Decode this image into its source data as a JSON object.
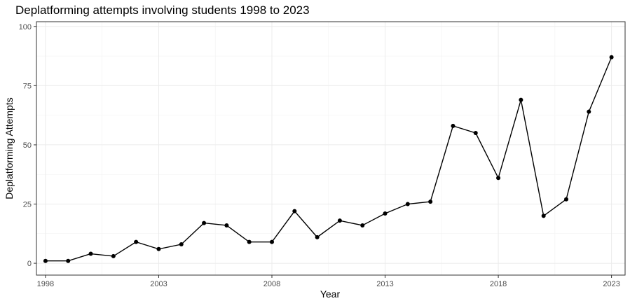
{
  "chart_data": {
    "type": "line",
    "title": "Deplatforming attempts involving students 1998 to 2023",
    "xlabel": "Year",
    "ylabel": "Deplatforming Attempts",
    "xlim": [
      1997.6,
      2023.6
    ],
    "ylim": [
      -5,
      102
    ],
    "x_ticks": [
      1998,
      2003,
      2008,
      2013,
      2018,
      2023
    ],
    "y_ticks": [
      0,
      25,
      50,
      75,
      100
    ],
    "grid": true,
    "legend": "none",
    "series": [
      {
        "x": [
          1998,
          1999,
          2000,
          2001,
          2002,
          2003,
          2004,
          2005,
          2006,
          2007,
          2008,
          2009,
          2010,
          2011,
          2012,
          2013,
          2014,
          2015,
          2016,
          2017,
          2018,
          2019,
          2020,
          2021,
          2022,
          2023
        ],
        "values": [
          1,
          1,
          4,
          3,
          9,
          6,
          8,
          17,
          16,
          9,
          9,
          22,
          11,
          18,
          16,
          21,
          25,
          26,
          58,
          55,
          36,
          69,
          20,
          27,
          64,
          87
        ],
        "color": "#000000"
      }
    ]
  }
}
